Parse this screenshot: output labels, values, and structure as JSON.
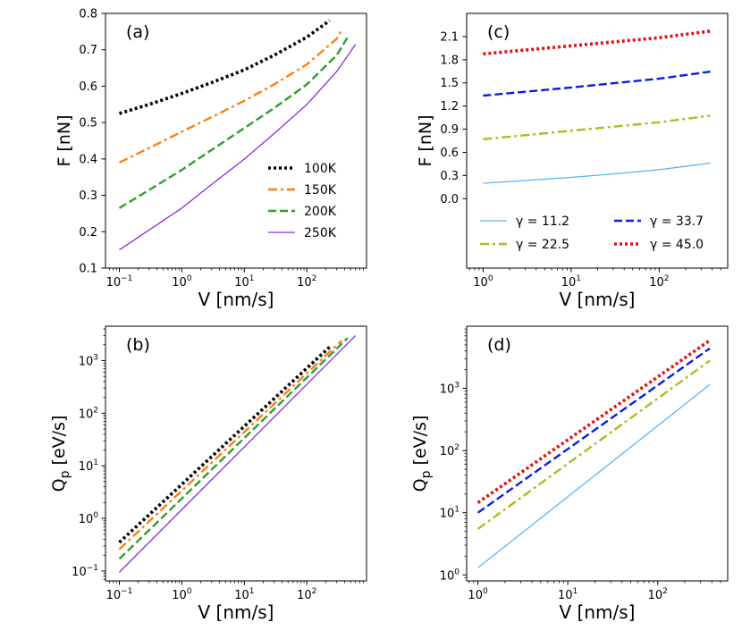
{
  "chart_data": [
    {
      "type": "line",
      "panel_label": "(a)",
      "xlabel": "V [nm/s]",
      "ylabel": "F [nN]",
      "xscale": "log",
      "yscale": "linear",
      "xlim": [
        0.06,
        900
      ],
      "ylim": [
        0.1,
        0.8
      ],
      "xticks": [
        {
          "v": 0.1,
          "m": "10",
          "e": "−1"
        },
        {
          "v": 1,
          "m": "10",
          "e": "0"
        },
        {
          "v": 10,
          "m": "10",
          "e": "1"
        },
        {
          "v": 100,
          "m": "10",
          "e": "2"
        }
      ],
      "yticks": [
        {
          "v": 0.1,
          "t": "0.1"
        },
        {
          "v": 0.2,
          "t": "0.2"
        },
        {
          "v": 0.3,
          "t": "0.3"
        },
        {
          "v": 0.4,
          "t": "0.4"
        },
        {
          "v": 0.5,
          "t": "0.5"
        },
        {
          "v": 0.6,
          "t": "0.6"
        },
        {
          "v": 0.7,
          "t": "0.7"
        },
        {
          "v": 0.8,
          "t": "0.8"
        }
      ],
      "legend": {
        "placement": "bottom-right",
        "columns": 1
      },
      "series": [
        {
          "name": "100K",
          "color": "#000000",
          "style": "dotted",
          "x": [
            0.1,
            0.3,
            1,
            3,
            10,
            30,
            100,
            230
          ],
          "y": [
            0.525,
            0.55,
            0.58,
            0.61,
            0.645,
            0.685,
            0.735,
            0.78
          ]
        },
        {
          "name": "150K",
          "color": "#ff7f0e",
          "style": "dashdot",
          "x": [
            0.1,
            0.3,
            1,
            3,
            10,
            30,
            100,
            300,
            360
          ],
          "y": [
            0.39,
            0.43,
            0.475,
            0.515,
            0.56,
            0.605,
            0.66,
            0.73,
            0.755
          ]
        },
        {
          "name": "200K",
          "color": "#2ca02c",
          "style": "dashed",
          "x": [
            0.1,
            0.3,
            1,
            3,
            10,
            30,
            100,
            300,
            450
          ],
          "y": [
            0.265,
            0.315,
            0.37,
            0.425,
            0.485,
            0.54,
            0.605,
            0.685,
            0.735
          ]
        },
        {
          "name": "250K",
          "color": "#8a2be2",
          "style": "solid",
          "x": [
            0.1,
            0.3,
            1,
            3,
            10,
            30,
            100,
            300,
            600
          ],
          "y": [
            0.15,
            0.205,
            0.265,
            0.33,
            0.4,
            0.47,
            0.55,
            0.64,
            0.715
          ]
        }
      ]
    },
    {
      "type": "line",
      "panel_label": "(b)",
      "xlabel": "V [nm/s]",
      "ylabel": "Q_p [eV/s]",
      "xscale": "log",
      "yscale": "log",
      "xlim": [
        0.06,
        900
      ],
      "ylim": [
        0.065,
        4500
      ],
      "xticks": [
        {
          "v": 0.1,
          "m": "10",
          "e": "−1"
        },
        {
          "v": 1,
          "m": "10",
          "e": "0"
        },
        {
          "v": 10,
          "m": "10",
          "e": "1"
        },
        {
          "v": 100,
          "m": "10",
          "e": "2"
        }
      ],
      "yticks": [
        {
          "v": 0.1,
          "m": "10",
          "e": "−1"
        },
        {
          "v": 1,
          "m": "10",
          "e": "0"
        },
        {
          "v": 10,
          "m": "10",
          "e": "1"
        },
        {
          "v": 100,
          "m": "10",
          "e": "2"
        },
        {
          "v": 1000,
          "m": "10",
          "e": "3"
        }
      ],
      "series": [
        {
          "name": "100K",
          "color": "#000000",
          "style": "dotted",
          "x": [
            0.1,
            230
          ],
          "y": [
            0.35,
            1800
          ]
        },
        {
          "name": "150K",
          "color": "#ff7f0e",
          "style": "dashdot",
          "x": [
            0.1,
            360
          ],
          "y": [
            0.26,
            2400
          ]
        },
        {
          "name": "200K",
          "color": "#2ca02c",
          "style": "dashed",
          "x": [
            0.1,
            450
          ],
          "y": [
            0.17,
            2700
          ]
        },
        {
          "name": "250K",
          "color": "#8a2be2",
          "style": "solid",
          "x": [
            0.1,
            600
          ],
          "y": [
            0.095,
            3000
          ]
        }
      ]
    },
    {
      "type": "line",
      "panel_label": "(c)",
      "xlabel": "V [nm/s]",
      "ylabel": "F [nN]",
      "xscale": "log",
      "yscale": "linear",
      "xlim": [
        0.65,
        600
      ],
      "ylim": [
        -0.9,
        2.4
      ],
      "xticks": [
        {
          "v": 1,
          "m": "10",
          "e": "0"
        },
        {
          "v": 10,
          "m": "10",
          "e": "1"
        },
        {
          "v": 100,
          "m": "10",
          "e": "2"
        }
      ],
      "yticks": [
        {
          "v": 0,
          "t": "0.0"
        },
        {
          "v": 0.3,
          "t": "0.3"
        },
        {
          "v": 0.6,
          "t": "0.6"
        },
        {
          "v": 0.9,
          "t": "0.9"
        },
        {
          "v": 1.2,
          "t": "1.2"
        },
        {
          "v": 1.5,
          "t": "1.5"
        },
        {
          "v": 1.8,
          "t": "1.8"
        },
        {
          "v": 2.1,
          "t": "2.1"
        }
      ],
      "legend": {
        "placement": "bottom",
        "columns": 2
      },
      "series": [
        {
          "name": "γ = 11.2",
          "color": "#5ab4ee",
          "style": "solid",
          "x": [
            1,
            3,
            10,
            30,
            100,
            380
          ],
          "y": [
            0.2,
            0.235,
            0.275,
            0.32,
            0.375,
            0.46
          ]
        },
        {
          "name": "γ = 22.5",
          "color": "#a8be1c",
          "style": "dashdot",
          "x": [
            1,
            10,
            100,
            380
          ],
          "y": [
            0.77,
            0.88,
            0.99,
            1.075
          ]
        },
        {
          "name": "γ = 33.7",
          "color": "#0a1ee0",
          "style": "dashed",
          "x": [
            1,
            10,
            100,
            380
          ],
          "y": [
            1.335,
            1.44,
            1.555,
            1.645
          ]
        },
        {
          "name": "γ = 45.0",
          "color": "#e81010",
          "style": "dotted",
          "x": [
            1,
            10,
            100,
            380
          ],
          "y": [
            1.875,
            1.98,
            2.085,
            2.17
          ]
        }
      ]
    },
    {
      "type": "line",
      "panel_label": "(d)",
      "xlabel": "V [nm/s]",
      "ylabel": "Q_p [eV/s]",
      "xscale": "log",
      "yscale": "log",
      "xlim": [
        0.75,
        600
      ],
      "ylim": [
        0.8,
        10000
      ],
      "xticks": [
        {
          "v": 1,
          "m": "10",
          "e": "0"
        },
        {
          "v": 10,
          "m": "10",
          "e": "1"
        },
        {
          "v": 100,
          "m": "10",
          "e": "2"
        }
      ],
      "yticks": [
        {
          "v": 1,
          "m": "10",
          "e": "0"
        },
        {
          "v": 10,
          "m": "10",
          "e": "1"
        },
        {
          "v": 100,
          "m": "10",
          "e": "2"
        },
        {
          "v": 1000,
          "m": "10",
          "e": "3"
        }
      ],
      "series": [
        {
          "name": "γ = 11.2",
          "color": "#5ab4ee",
          "style": "solid",
          "x": [
            1,
            380
          ],
          "y": [
            1.3,
            1150
          ]
        },
        {
          "name": "γ = 22.5",
          "color": "#a8be1c",
          "style": "dashdot",
          "x": [
            1,
            380
          ],
          "y": [
            5.5,
            2800
          ]
        },
        {
          "name": "γ = 33.7",
          "color": "#0a1ee0",
          "style": "dashed",
          "x": [
            1,
            380
          ],
          "y": [
            10,
            4400
          ]
        },
        {
          "name": "γ = 45.0",
          "color": "#e81010",
          "style": "dotted",
          "x": [
            1,
            380
          ],
          "y": [
            14.5,
            5900
          ]
        }
      ]
    }
  ]
}
